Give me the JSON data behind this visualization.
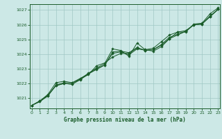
{
  "title": "Graphe pression niveau de la mer (hPa)",
  "bg_color": "#cce8e6",
  "line_color": "#1a5c2a",
  "grid_color": "#a0c8c4",
  "x_min": 0,
  "x_max": 23,
  "y_min": 1020.3,
  "y_max": 1027.4,
  "yticks": [
    1021,
    1022,
    1023,
    1024,
    1025,
    1026,
    1027
  ],
  "xticks": [
    0,
    1,
    2,
    3,
    4,
    5,
    6,
    7,
    8,
    9,
    10,
    11,
    12,
    13,
    14,
    15,
    16,
    17,
    18,
    19,
    20,
    21,
    22,
    23
  ],
  "series": [
    [
      1020.5,
      1020.8,
      1021.2,
      1021.85,
      1022.0,
      1021.95,
      1022.3,
      1022.7,
      1023.05,
      1023.35,
      1024.35,
      1024.25,
      1023.85,
      1024.75,
      1024.3,
      1024.2,
      1024.5,
      1025.05,
      1025.5,
      1025.5,
      1026.05,
      1026.1,
      1026.75,
      1027.15
    ],
    [
      1020.5,
      1020.8,
      1021.15,
      1021.85,
      1022.0,
      1021.95,
      1022.25,
      1022.65,
      1022.95,
      1023.25,
      1024.05,
      1024.15,
      1023.95,
      1024.35,
      1024.3,
      1024.4,
      1024.85,
      1025.3,
      1025.5,
      1025.6,
      1026.0,
      1026.05,
      1026.55,
      1027.05
    ],
    [
      1020.5,
      1020.75,
      1021.15,
      1021.9,
      1022.05,
      1022.05,
      1022.35,
      1022.65,
      1023.0,
      1023.25,
      1024.15,
      1024.2,
      1024.1,
      1024.45,
      1024.25,
      1024.3,
      1024.65,
      1025.15,
      1025.35,
      1025.55,
      1026.0,
      1026.05,
      1026.6,
      1027.05
    ],
    [
      1020.5,
      1020.8,
      1021.25,
      1022.05,
      1022.15,
      1022.05,
      1022.3,
      1022.6,
      1023.2,
      1023.4,
      1023.8,
      1024.05,
      1024.05,
      1024.4,
      1024.25,
      1024.3,
      1024.6,
      1025.05,
      1025.3,
      1025.55,
      1026.0,
      1026.05,
      1026.55,
      1027.05
    ]
  ]
}
